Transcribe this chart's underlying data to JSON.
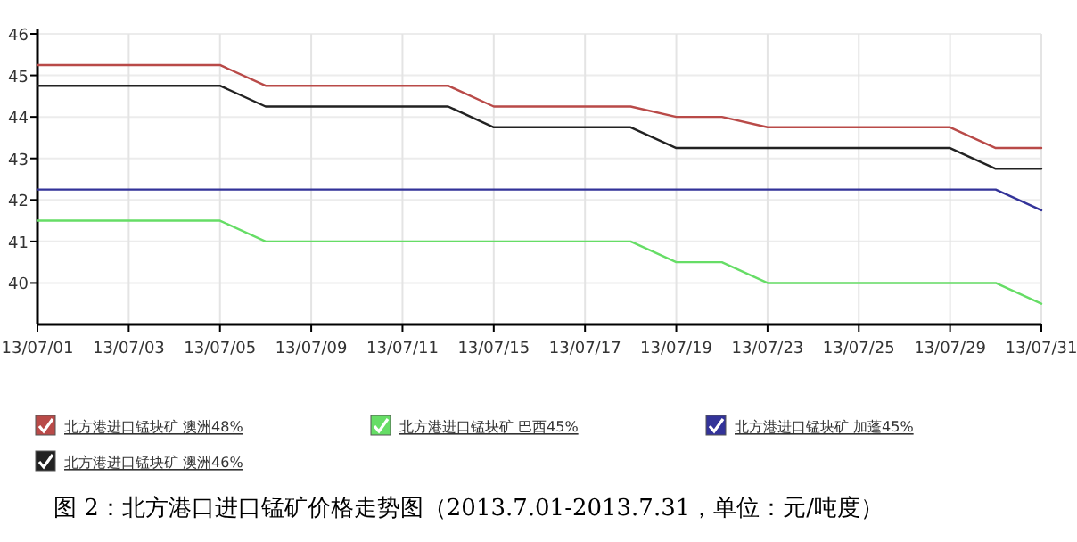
{
  "chart_data": {
    "type": "line",
    "categories": [
      "13/07/01",
      null,
      "13/07/03",
      null,
      "13/07/05",
      null,
      "13/07/09",
      null,
      "13/07/11",
      null,
      "13/07/15",
      null,
      "13/07/17",
      null,
      "13/07/19",
      null,
      "13/07/23",
      null,
      "13/07/25",
      null,
      "13/07/29",
      null,
      "13/07/31"
    ],
    "series": [
      {
        "name": "北方港进口锰块矿 澳洲48%",
        "color": "#b94a48",
        "values": [
          45.25,
          null,
          null,
          null,
          45.25,
          44.75,
          null,
          null,
          null,
          44.75,
          44.25,
          null,
          null,
          44.25,
          44.0,
          44.0,
          43.75,
          null,
          null,
          null,
          43.75,
          43.25,
          43.25
        ]
      },
      {
        "name": "北方港进口锰块矿 巴西45%",
        "color": "#66dd66",
        "values": [
          41.5,
          null,
          null,
          null,
          41.5,
          41.0,
          null,
          null,
          null,
          null,
          null,
          null,
          null,
          41.0,
          40.5,
          40.5,
          40.0,
          null,
          null,
          null,
          null,
          40.0,
          39.5
        ]
      },
      {
        "name": "北方港进口锰块矿 加蓬45%",
        "color": "#333399",
        "values": [
          42.25,
          null,
          null,
          null,
          null,
          null,
          null,
          null,
          null,
          null,
          null,
          null,
          null,
          null,
          null,
          null,
          null,
          null,
          null,
          null,
          null,
          42.25,
          41.75
        ]
      },
      {
        "name": "北方港进口锰块矿 澳洲46%",
        "color": "#222222",
        "values": [
          44.75,
          null,
          null,
          null,
          44.75,
          44.25,
          null,
          null,
          null,
          44.25,
          43.75,
          null,
          null,
          43.75,
          43.25,
          null,
          null,
          null,
          null,
          null,
          43.25,
          42.75,
          42.75
        ]
      }
    ],
    "ylim": [
      39,
      46
    ],
    "yticks": [
      40,
      41,
      42,
      43,
      44,
      45,
      46
    ],
    "grid": true,
    "legend": "bottom",
    "marker": "none",
    "line_style": "solid",
    "annotations": [
      "图 2：北方港口进口锰矿价格走势图（2013.7.01-2013.7.31，单位：元/吨度）"
    ]
  }
}
